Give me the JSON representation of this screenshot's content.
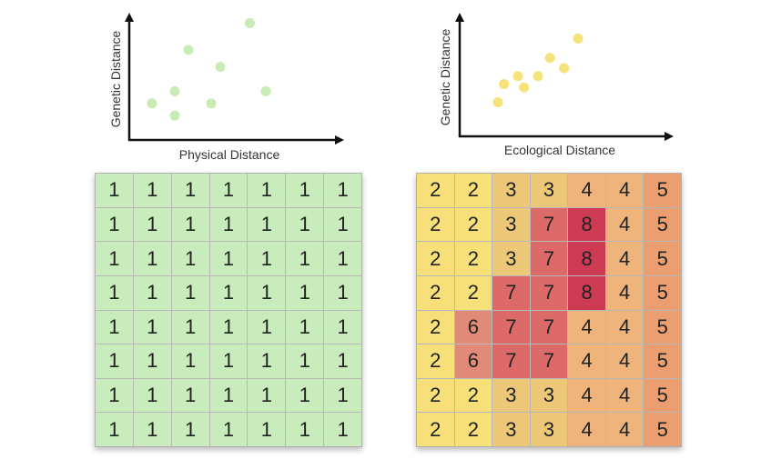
{
  "left_plot": {
    "xlabel": "Physical Distance",
    "ylabel": "Genetic Distance",
    "point_color": "#c9ecb4",
    "points": [
      {
        "x": 1.0,
        "y": 3.0
      },
      {
        "x": 2.0,
        "y": 2.0
      },
      {
        "x": 2.0,
        "y": 4.0
      },
      {
        "x": 2.6,
        "y": 7.4
      },
      {
        "x": 3.6,
        "y": 3.0
      },
      {
        "x": 4.0,
        "y": 6.0
      },
      {
        "x": 5.3,
        "y": 9.6
      },
      {
        "x": 6.0,
        "y": 4.0
      }
    ]
  },
  "right_plot": {
    "xlabel": "Ecological Distance",
    "ylabel": "Genetic Distance",
    "point_color": "#f6e27a",
    "points": [
      {
        "x": 1.0,
        "y": 3.0
      },
      {
        "x": 1.3,
        "y": 4.6
      },
      {
        "x": 2.0,
        "y": 5.3
      },
      {
        "x": 2.3,
        "y": 4.3
      },
      {
        "x": 3.0,
        "y": 5.3
      },
      {
        "x": 3.6,
        "y": 6.9
      },
      {
        "x": 4.3,
        "y": 6.0
      },
      {
        "x": 5.0,
        "y": 8.6
      }
    ]
  },
  "left_grid": {
    "color_map": {
      "1": "#c9ecbc"
    },
    "rows": [
      [
        1,
        1,
        1,
        1,
        1,
        1,
        1
      ],
      [
        1,
        1,
        1,
        1,
        1,
        1,
        1
      ],
      [
        1,
        1,
        1,
        1,
        1,
        1,
        1
      ],
      [
        1,
        1,
        1,
        1,
        1,
        1,
        1
      ],
      [
        1,
        1,
        1,
        1,
        1,
        1,
        1
      ],
      [
        1,
        1,
        1,
        1,
        1,
        1,
        1
      ],
      [
        1,
        1,
        1,
        1,
        1,
        1,
        1
      ],
      [
        1,
        1,
        1,
        1,
        1,
        1,
        1
      ]
    ]
  },
  "right_grid": {
    "color_map": {
      "2": "#f7e07a",
      "3": "#eec879",
      "4": "#eeb47c",
      "5": "#eb9f70",
      "6": "#e08a77",
      "7": "#dc6a68",
      "8": "#cc3a53"
    },
    "rows": [
      [
        2,
        2,
        3,
        3,
        4,
        4,
        5
      ],
      [
        2,
        2,
        3,
        7,
        8,
        4,
        5
      ],
      [
        2,
        2,
        3,
        7,
        8,
        4,
        5
      ],
      [
        2,
        2,
        7,
        7,
        8,
        4,
        5
      ],
      [
        2,
        6,
        7,
        7,
        4,
        4,
        5
      ],
      [
        2,
        6,
        7,
        7,
        4,
        4,
        5
      ],
      [
        2,
        2,
        3,
        3,
        4,
        4,
        5
      ],
      [
        2,
        2,
        3,
        3,
        4,
        4,
        5
      ]
    ]
  }
}
